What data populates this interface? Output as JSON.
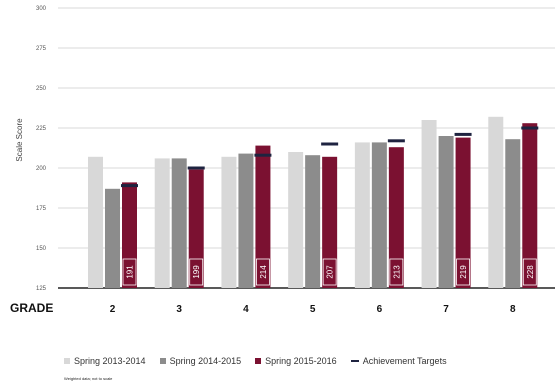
{
  "chart_data": {
    "type": "bar",
    "ylabel": "Scale Score",
    "xlabel": "GRADE",
    "ylim": [
      125,
      300
    ],
    "yticks": [
      "300",
      "275",
      "250",
      "225",
      "200",
      "175",
      "150",
      "125"
    ],
    "categories": [
      "2",
      "3",
      "4",
      "5",
      "6",
      "7",
      "8"
    ],
    "series": [
      {
        "name": "Spring 2013-2014",
        "color": "#d8d8d8",
        "values": [
          207,
          206,
          207,
          210,
          216,
          230,
          232
        ]
      },
      {
        "name": "Spring 2014-2015",
        "color": "#8c8c8c",
        "values": [
          187,
          206,
          209,
          208,
          216,
          220,
          218
        ]
      },
      {
        "name": "Spring 2015-2016",
        "color": "#7b1131",
        "values": [
          191,
          199,
          214,
          207,
          213,
          219,
          228
        ],
        "labels": [
          "191",
          "199",
          "214",
          "207",
          "213",
          "219",
          "228"
        ]
      }
    ],
    "targets": {
      "name": "Achievement Targets",
      "color": "#1e2340",
      "values": [
        189,
        200,
        208,
        215,
        217,
        221,
        225
      ]
    },
    "grid": true,
    "legend_position": "bottom",
    "source_note": "Weighted data; not to scale"
  }
}
